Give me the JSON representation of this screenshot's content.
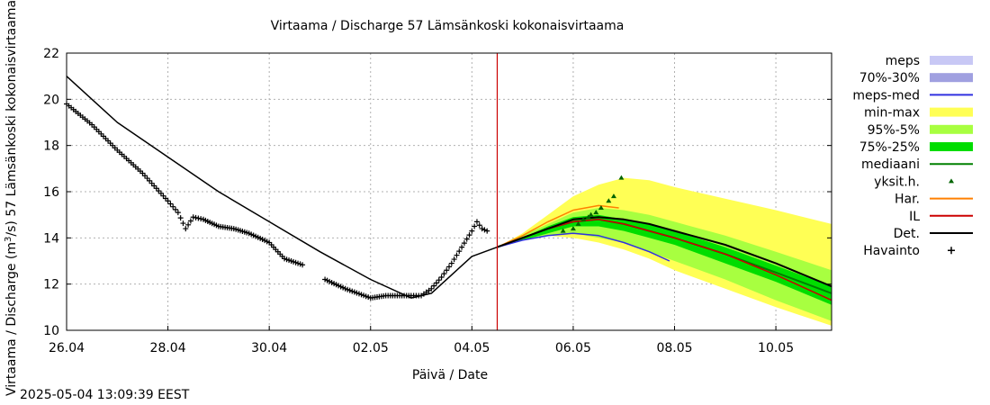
{
  "chart_data": {
    "type": "line",
    "title": "Virtaama / Discharge  57 Lämsänkoski kokonaisvirtaama",
    "ylabel_parts": [
      "Virtaama / Discharge (m",
      "3",
      "/s)  57 Lämsänkoski kokonaisvirtaama"
    ],
    "xlabel": "Päivä / Date",
    "timestamp": "2025-05-04 13:09:39 EEST",
    "xlim_days": [
      0,
      15.1
    ],
    "ylim": [
      10,
      22
    ],
    "yticks": [
      10,
      12,
      14,
      16,
      18,
      20,
      22
    ],
    "xticks": [
      {
        "day": 0,
        "label": "26.04"
      },
      {
        "day": 2,
        "label": "28.04"
      },
      {
        "day": 4,
        "label": "30.04"
      },
      {
        "day": 6,
        "label": "02.05"
      },
      {
        "day": 8,
        "label": "04.05"
      },
      {
        "day": 10,
        "label": "06.05"
      },
      {
        "day": 12,
        "label": "08.05"
      },
      {
        "day": 14,
        "label": "10.05"
      }
    ],
    "grid": true,
    "legend_position": "right",
    "now_marker_day": 8.5,
    "colors": {
      "meps": "#c8c8f5",
      "band70_30": "#a0a0e0",
      "meps_med": "#3030e0",
      "minmax": "#ffff55",
      "band95_5": "#a8ff40",
      "band75_25": "#00dd00",
      "median": "#008000",
      "yksit": "#006400",
      "har": "#ff8000",
      "il": "#cc0000",
      "det": "#000000",
      "havainto": "#000000",
      "now": "#cc0000"
    },
    "legend": [
      {
        "key": "meps",
        "label": "meps",
        "style": "band"
      },
      {
        "key": "band70_30",
        "label": "70%-30%",
        "style": "band"
      },
      {
        "key": "meps_med",
        "label": "meps-med",
        "style": "line"
      },
      {
        "key": "minmax",
        "label": "min-max",
        "style": "band"
      },
      {
        "key": "band95_5",
        "label": "95%-5%",
        "style": "band"
      },
      {
        "key": "band75_25",
        "label": "75%-25%",
        "style": "band"
      },
      {
        "key": "median",
        "label": "mediaani",
        "style": "line"
      },
      {
        "key": "yksit",
        "label": "yksit.h.",
        "style": "triangle"
      },
      {
        "key": "har",
        "label": "Har.",
        "style": "line"
      },
      {
        "key": "il",
        "label": "IL",
        "style": "line"
      },
      {
        "key": "det",
        "label": "Det.",
        "style": "line"
      },
      {
        "key": "havainto",
        "label": "Havainto",
        "style": "plus"
      }
    ],
    "series": {
      "det_hist": {
        "x": [
          0,
          1,
          2,
          3,
          4,
          5,
          6,
          6.8,
          7.2,
          7.6,
          8.0,
          8.5
        ],
        "y": [
          21.0,
          19.0,
          17.5,
          16.0,
          14.7,
          13.4,
          12.2,
          11.4,
          11.6,
          12.4,
          13.2,
          13.6
        ]
      },
      "havainto": {
        "x": [
          0,
          0.5,
          1.0,
          1.5,
          2.0,
          2.2,
          2.35,
          2.5,
          2.7,
          3.0,
          3.3,
          3.6,
          4.0,
          4.3,
          4.7,
          5.1,
          5.5,
          6.0,
          6.3,
          6.8,
          7.0,
          7.2,
          7.4,
          7.6,
          7.8,
          8.0,
          8.1,
          8.2,
          8.3
        ],
        "y": [
          19.8,
          18.9,
          17.8,
          16.8,
          15.6,
          15.1,
          14.4,
          14.9,
          14.8,
          14.5,
          14.4,
          14.2,
          13.8,
          13.1,
          12.8,
          12.2,
          11.8,
          11.4,
          11.5,
          11.5,
          11.5,
          11.8,
          12.3,
          12.9,
          13.6,
          14.3,
          14.7,
          14.4,
          14.3
        ],
        "gaps_after_day": [
          4.7
        ]
      },
      "minmax": {
        "x": [
          8.5,
          9.0,
          9.5,
          10.0,
          10.5,
          11.0,
          11.5,
          12.0,
          13.0,
          14.0,
          15.1
        ],
        "upper": [
          13.6,
          14.2,
          15.0,
          15.8,
          16.3,
          16.6,
          16.5,
          16.2,
          15.7,
          15.2,
          14.6
        ],
        "lower": [
          13.6,
          13.9,
          14.1,
          14.0,
          13.8,
          13.5,
          13.1,
          12.6,
          11.8,
          11.0,
          10.2
        ]
      },
      "band95_5": {
        "x": [
          8.5,
          9.0,
          9.5,
          10.0,
          10.5,
          11.0,
          11.5,
          12.0,
          13.0,
          14.0,
          15.1
        ],
        "upper": [
          13.6,
          14.1,
          14.6,
          15.1,
          15.3,
          15.2,
          15.0,
          14.7,
          14.1,
          13.4,
          12.6
        ],
        "lower": [
          13.6,
          13.9,
          14.1,
          14.2,
          14.0,
          13.8,
          13.4,
          13.0,
          12.2,
          11.3,
          10.4
        ]
      },
      "band75_25": {
        "x": [
          8.5,
          9.0,
          9.5,
          10.0,
          10.5,
          11.0,
          11.5,
          12.0,
          13.0,
          14.0,
          15.1
        ],
        "upper": [
          13.6,
          14.0,
          14.5,
          14.9,
          15.0,
          14.8,
          14.6,
          14.3,
          13.6,
          12.8,
          11.9
        ],
        "lower": [
          13.6,
          13.9,
          14.2,
          14.5,
          14.5,
          14.3,
          14.0,
          13.7,
          12.9,
          12.1,
          11.1
        ]
      },
      "median": {
        "x": [
          8.5,
          9.0,
          9.5,
          10.0,
          10.5,
          11.0,
          11.5,
          12.0,
          13.0,
          14.0,
          15.1
        ],
        "y": [
          13.6,
          14.0,
          14.4,
          14.7,
          14.8,
          14.6,
          14.3,
          14.0,
          13.3,
          12.5,
          11.6
        ]
      },
      "det_fc": {
        "x": [
          8.5,
          9.0,
          9.5,
          10.0,
          10.5,
          11.0,
          11.5,
          12.0,
          13.0,
          14.0,
          15.1
        ],
        "y": [
          13.6,
          14.0,
          14.4,
          14.8,
          14.9,
          14.8,
          14.6,
          14.3,
          13.7,
          12.9,
          11.9
        ]
      },
      "il": {
        "x": [
          8.5,
          9.0,
          9.5,
          10.0,
          10.5,
          11.0,
          11.5,
          12.0,
          13.0,
          14.0,
          15.1
        ],
        "y": [
          13.6,
          14.0,
          14.4,
          14.7,
          14.8,
          14.6,
          14.3,
          14.0,
          13.3,
          12.4,
          11.3
        ]
      },
      "har": {
        "x": [
          8.5,
          9.0,
          9.5,
          10.0,
          10.5,
          10.9
        ],
        "y": [
          13.6,
          14.1,
          14.7,
          15.2,
          15.4,
          15.3
        ]
      },
      "meps_med": {
        "x": [
          8.5,
          9.0,
          9.5,
          10.0,
          10.5,
          11.0,
          11.5,
          11.9
        ],
        "y": [
          13.6,
          13.9,
          14.1,
          14.2,
          14.1,
          13.8,
          13.4,
          13.0
        ]
      },
      "yksit": {
        "x": [
          9.8,
          10.0,
          10.1,
          10.2,
          10.3,
          10.35,
          10.45,
          10.55,
          10.7,
          10.8,
          10.95
        ],
        "y": [
          14.3,
          14.4,
          14.6,
          14.8,
          14.9,
          15.0,
          15.1,
          15.3,
          15.6,
          15.8,
          16.6
        ]
      }
    }
  }
}
